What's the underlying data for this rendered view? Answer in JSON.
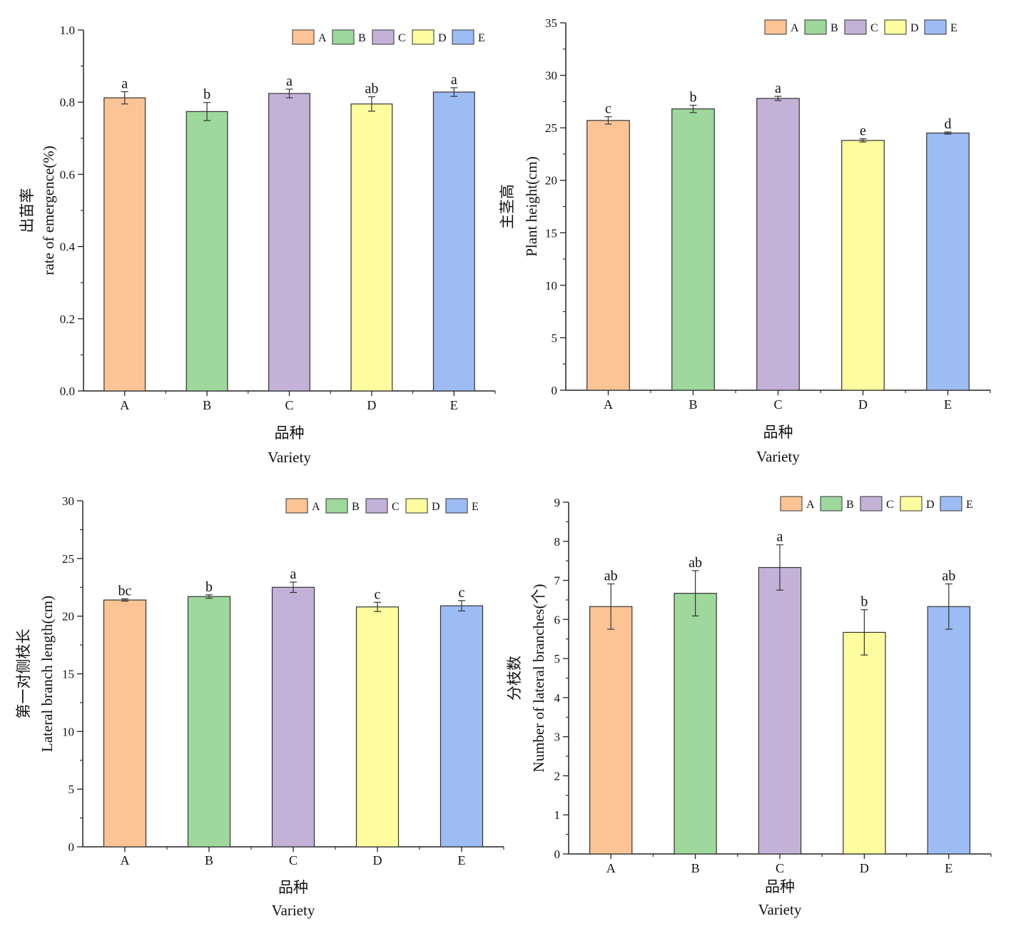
{
  "colors": {
    "A": "#fcc495",
    "B": "#9ed89c",
    "C": "#c4b1d8",
    "D": "#fdfc9f",
    "E": "#9dbcf3",
    "axis": "#222222"
  },
  "chart_data": [
    {
      "type": "bar",
      "categories": [
        "A",
        "B",
        "C",
        "D",
        "E"
      ],
      "values": [
        0.812,
        0.774,
        0.824,
        0.795,
        0.828
      ],
      "errors": [
        0.017,
        0.025,
        0.012,
        0.02,
        0.012
      ],
      "significance": [
        "a",
        "b",
        "a",
        "ab",
        "a"
      ],
      "legend": [
        "A",
        "B",
        "C",
        "D",
        "E"
      ],
      "legend_position": "top-right",
      "ylabel_cn": "出苗率",
      "ylabel_en": "rate of emergence(%)",
      "xlabel_cn": "品种",
      "xlabel_en": "Variety",
      "ylim": [
        0,
        1.0
      ],
      "yticks": [
        "0.0",
        "0.2",
        "0.4",
        "0.6",
        "0.8",
        "1.0"
      ]
    },
    {
      "type": "bar",
      "categories": [
        "A",
        "B",
        "C",
        "D",
        "E"
      ],
      "values": [
        25.7,
        26.8,
        27.8,
        23.8,
        24.5
      ],
      "errors": [
        0.35,
        0.35,
        0.2,
        0.15,
        0.1
      ],
      "significance": [
        "c",
        "b",
        "a",
        "e",
        "d"
      ],
      "legend": [
        "A",
        "B",
        "C",
        "D",
        "E"
      ],
      "legend_position": "top-right",
      "ylabel_cn": "主茎高",
      "ylabel_en": "Plant height(cm)",
      "xlabel_cn": "品种",
      "xlabel_en": "Variety",
      "ylim": [
        0,
        35
      ],
      "yticks": [
        "0",
        "5",
        "10",
        "15",
        "20",
        "25",
        "30",
        "35"
      ]
    },
    {
      "type": "bar",
      "categories": [
        "A",
        "B",
        "C",
        "D",
        "E"
      ],
      "values": [
        21.4,
        21.7,
        22.5,
        20.8,
        20.9
      ],
      "errors": [
        0.1,
        0.15,
        0.45,
        0.4,
        0.45
      ],
      "significance": [
        "bc",
        "b",
        "a",
        "c",
        "c"
      ],
      "legend": [
        "A",
        "B",
        "C",
        "D",
        "E"
      ],
      "legend_position": "top-right",
      "ylabel_cn": "第一对侧枝长",
      "ylabel_en": "Lateral branch length(cm)",
      "xlabel_cn": "品种",
      "xlabel_en": "Variety",
      "ylim": [
        0,
        30
      ],
      "yticks": [
        "0",
        "5",
        "10",
        "15",
        "20",
        "25",
        "30"
      ]
    },
    {
      "type": "bar",
      "categories": [
        "A",
        "B",
        "C",
        "D",
        "E"
      ],
      "values": [
        6.33,
        6.67,
        7.33,
        5.67,
        6.33
      ],
      "errors": [
        0.58,
        0.58,
        0.58,
        0.58,
        0.58
      ],
      "significance": [
        "ab",
        "ab",
        "a",
        "b",
        "ab"
      ],
      "legend": [
        "A",
        "B",
        "C",
        "D",
        "E"
      ],
      "legend_position": "top-right",
      "ylabel_cn": "分枝数",
      "ylabel_en": "Number of lateral branches(个)",
      "xlabel_cn": "品种",
      "xlabel_en": "Variety",
      "ylim": [
        0,
        9
      ],
      "yticks": [
        "0",
        "1",
        "2",
        "3",
        "4",
        "5",
        "6",
        "7",
        "8",
        "9"
      ]
    }
  ]
}
